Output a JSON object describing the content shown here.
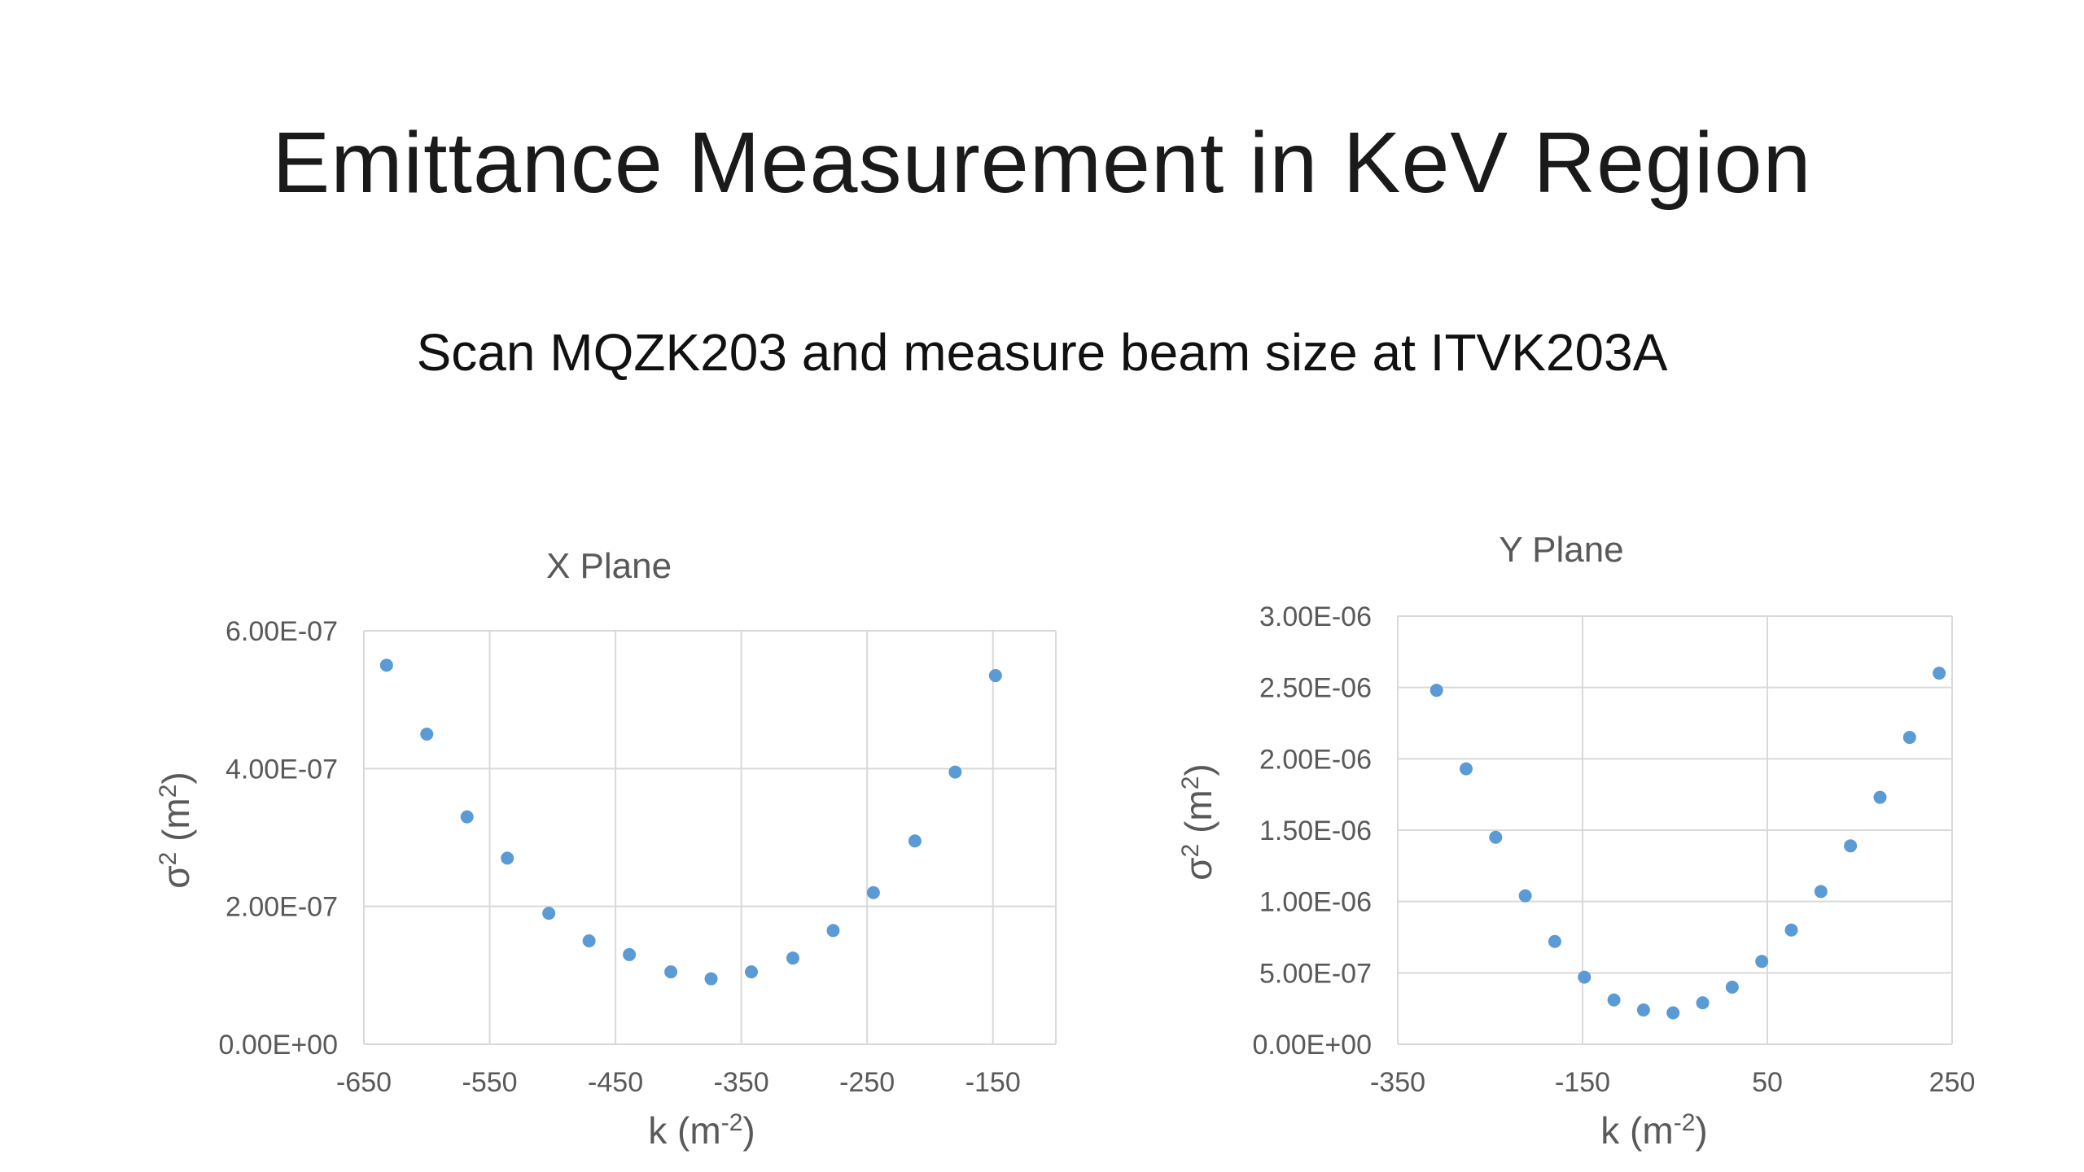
{
  "slide": {
    "title": "Emittance Measurement in KeV Region",
    "subtitle": "Scan MQZK203 and measure beam size at ITVK203A"
  },
  "colors": {
    "marker": "#5b9bd5",
    "grid": "#d9d9d9",
    "text": "#595959"
  },
  "chart_data": [
    {
      "type": "scatter",
      "title": "X Plane",
      "xlabel_base": "k (m",
      "xlabel_sup": "-2",
      "xlabel_end": ")",
      "ylabel_base": "σ",
      "ylabel_sup": "2",
      "ylabel_mid": " (m",
      "ylabel_sup2": "2",
      "ylabel_end": ")",
      "xlim": [
        -650,
        -100
      ],
      "ylim": [
        0,
        6e-07
      ],
      "xticks": [
        -650,
        -550,
        -450,
        -350,
        -250,
        -150
      ],
      "xtick_labels": [
        "-650",
        "-550",
        "-450",
        "-350",
        "-250",
        "-150"
      ],
      "yticks": [
        0,
        2e-07,
        4e-07,
        6e-07
      ],
      "ytick_labels": [
        "0.00E+00",
        "2.00E-07",
        "4.00E-07",
        "6.00E-07"
      ],
      "grid": true,
      "x": [
        -632,
        -600,
        -568,
        -536,
        -503,
        -471,
        -439,
        -406,
        -374,
        -342,
        -309,
        -277,
        -245,
        -212,
        -180,
        -148
      ],
      "y": [
        5.5e-07,
        4.5e-07,
        3.3e-07,
        2.7e-07,
        1.9e-07,
        1.5e-07,
        1.3e-07,
        1.05e-07,
        9.5e-08,
        1.05e-07,
        1.25e-07,
        1.65e-07,
        2.2e-07,
        2.95e-07,
        3.95e-07,
        5.35e-07
      ]
    },
    {
      "type": "scatter",
      "title": "Y Plane",
      "xlabel_base": "k (m",
      "xlabel_sup": "-2",
      "xlabel_end": ")",
      "ylabel_base": "σ",
      "ylabel_sup": "2",
      "ylabel_mid": " (m",
      "ylabel_sup2": "2",
      "ylabel_end": ")",
      "xlim": [
        -350,
        250
      ],
      "ylim": [
        0,
        3e-06
      ],
      "xticks": [
        -350,
        -150,
        50,
        250
      ],
      "xtick_labels": [
        "-350",
        "-150",
        "50",
        "250"
      ],
      "yticks": [
        0,
        5e-07,
        1e-06,
        1.5e-06,
        2e-06,
        2.5e-06,
        3e-06
      ],
      "ytick_labels": [
        "0.00E+00",
        "5.00E-07",
        "1.00E-06",
        "1.50E-06",
        "2.00E-06",
        "2.50E-06",
        "3.00E-06"
      ],
      "grid": true,
      "x": [
        -308,
        -276,
        -244,
        -212,
        -180,
        -148,
        -116,
        -84,
        -52,
        -20,
        12,
        44,
        76,
        108,
        140,
        172,
        204,
        236
      ],
      "y": [
        2.48e-06,
        1.93e-06,
        1.45e-06,
        1.04e-06,
        7.2e-07,
        4.7e-07,
        3.1e-07,
        2.4e-07,
        2.2e-07,
        2.9e-07,
        4e-07,
        5.8e-07,
        8e-07,
        1.07e-06,
        1.39e-06,
        1.73e-06,
        2.15e-06,
        2.6e-06
      ]
    }
  ]
}
